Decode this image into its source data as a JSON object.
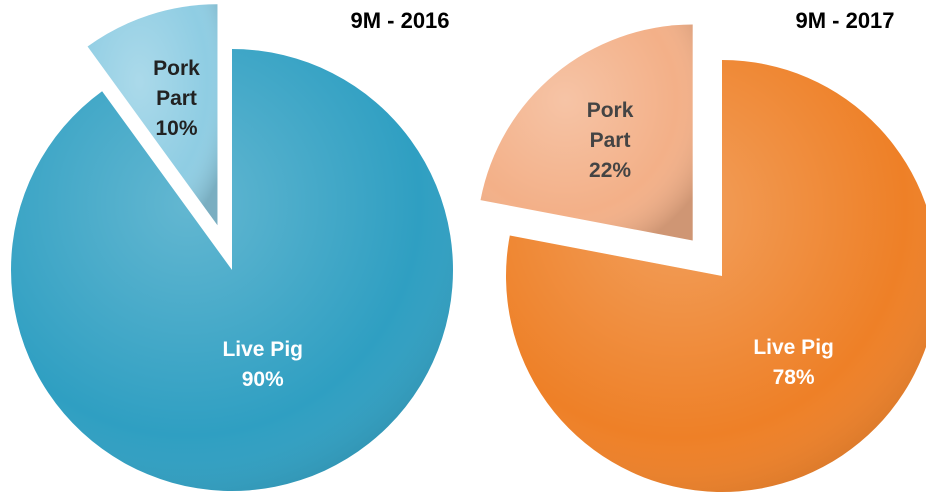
{
  "chart_data": [
    {
      "type": "pie",
      "title": "9M - 2016",
      "categories": [
        "Live Pig",
        "Pork Part"
      ],
      "values": [
        90,
        10
      ],
      "value_labels": [
        "90%",
        "10%"
      ],
      "colors": [
        "#2f9fc2",
        "#8fcde3"
      ]
    },
    {
      "type": "pie",
      "title": "9M - 2017",
      "categories": [
        "Live Pig",
        "Pork Part"
      ],
      "values": [
        78,
        22
      ],
      "value_labels": [
        "78%",
        "22%"
      ],
      "colors": [
        "#ee8027",
        "#f3b088"
      ]
    }
  ]
}
